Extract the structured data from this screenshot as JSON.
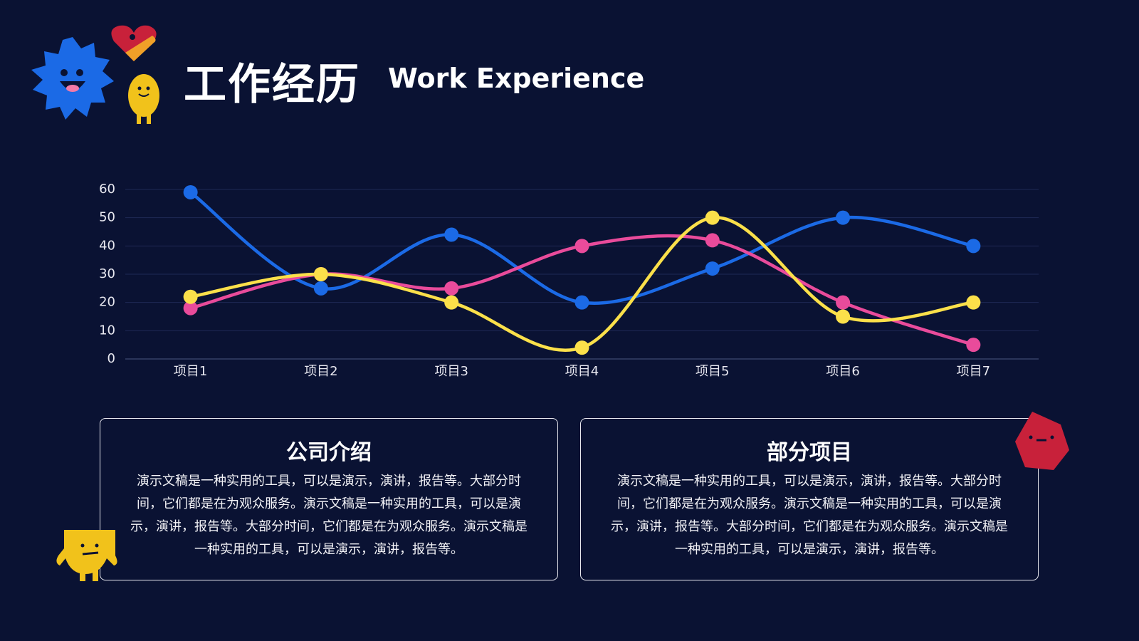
{
  "header": {
    "title": "工作经历",
    "subtitle": "Work Experience"
  },
  "chart_data": {
    "type": "line",
    "categories": [
      "项目1",
      "项目2",
      "项目3",
      "项目4",
      "项目5",
      "项目6",
      "项目7"
    ],
    "series": [
      {
        "color": "#1b6ae6",
        "values": [
          59,
          25,
          44,
          20,
          32,
          50,
          40
        ]
      },
      {
        "color": "#e94b9b",
        "values": [
          18,
          30,
          25,
          40,
          42,
          20,
          5
        ]
      },
      {
        "color": "#fbe04a",
        "values": [
          22,
          30,
          20,
          4,
          50,
          15,
          20
        ]
      }
    ],
    "ylim": [
      0,
      60
    ],
    "yticks": [
      0,
      10,
      20,
      30,
      40,
      50,
      60
    ],
    "grid": true,
    "smooth": true
  },
  "cards": [
    {
      "title": "公司介绍",
      "body": "演示文稿是一种实用的工具，可以是演示，演讲，报告等。大部分时间，它们都是在为观众服务。演示文稿是一种实用的工具，可以是演示，演讲，报告等。大部分时间，它们都是在为观众服务。演示文稿是一种实用的工具，可以是演示，演讲，报告等。"
    },
    {
      "title": "部分项目",
      "body": "演示文稿是一种实用的工具，可以是演示，演讲，报告等。大部分时间，它们都是在为观众服务。演示文稿是一种实用的工具，可以是演示，演讲，报告等。大部分时间，它们都是在为观众服务。演示文稿是一种实用的工具，可以是演示，演讲，报告等。"
    }
  ]
}
